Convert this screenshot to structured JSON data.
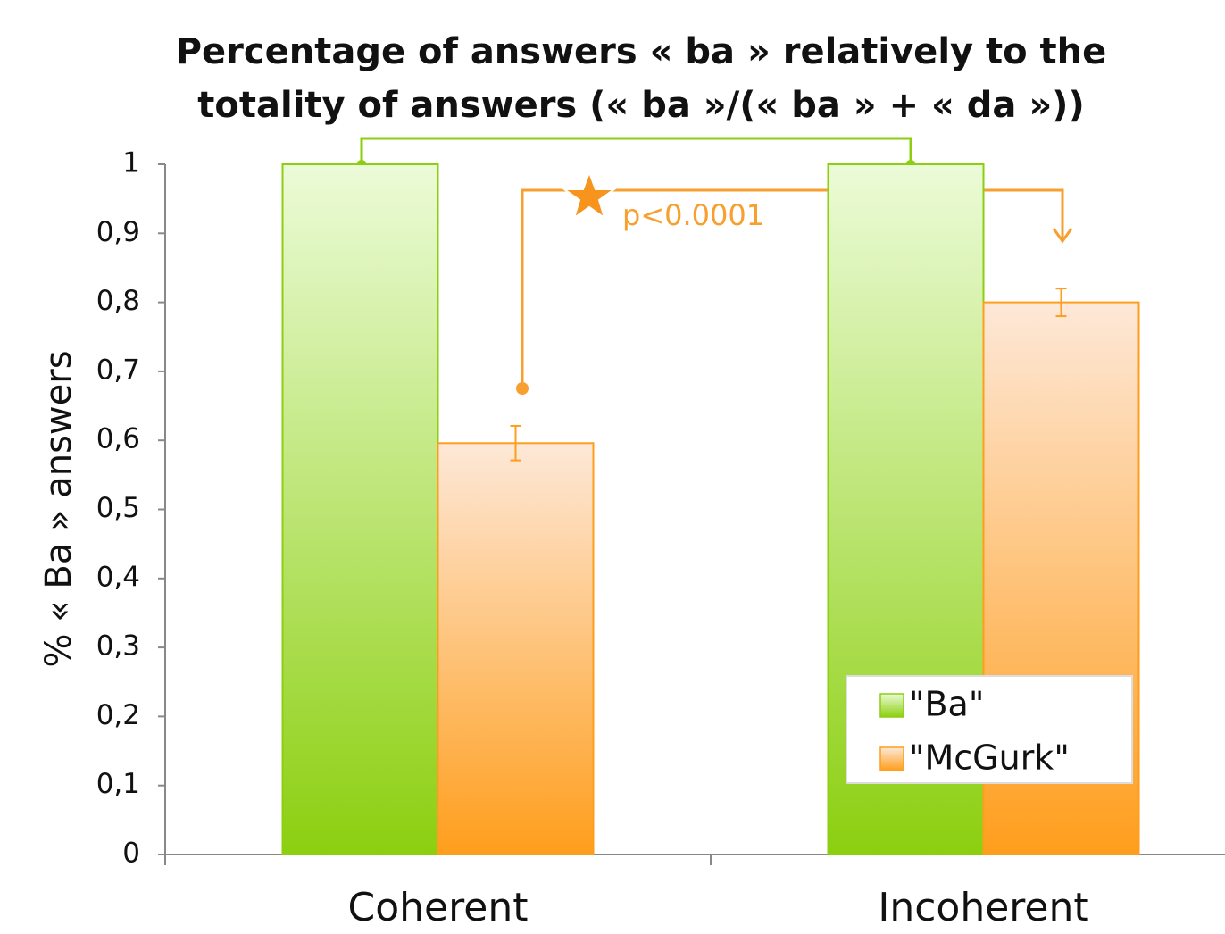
{
  "chart_data": {
    "type": "bar",
    "title": [
      "Percentage of answers  « ba » relatively to the",
      "totality of answers (« ba »/(« ba » + « da »))"
    ],
    "y_label": "% « Ba »  answers",
    "categories": [
      "Coherent",
      "Incoherent"
    ],
    "series": [
      {
        "name": "\"Ba\"",
        "color": "#8ccf10",
        "light": "#ecfbd8",
        "values": [
          1,
          1
        ]
      },
      {
        "name": "\"McGurk\"",
        "color": "#ff9e1c",
        "light": "#fde8d8",
        "values": [
          0.596,
          0.8
        ],
        "errors": [
          0.025,
          0.02
        ]
      }
    ],
    "ylim": [
      0,
      1
    ],
    "yticks": [
      0,
      {
        "value": 0.1,
        "label": "0,1"
      },
      {
        "value": 0.2,
        "label": "0,2"
      },
      {
        "value": 0.3,
        "label": "0,3"
      },
      {
        "value": 0.4,
        "label": "0,4"
      },
      {
        "value": 0.5,
        "label": "0,5"
      },
      {
        "value": 0.6,
        "label": "0,6"
      },
      {
        "value": 0.7,
        "label": "0,7"
      },
      {
        "value": 0.8,
        "label": "0,8"
      },
      {
        "value": 0.9,
        "label": "0,9"
      },
      1
    ],
    "annotations": [
      "p<0.0001"
    ],
    "legend": "lower right",
    "grid": false
  }
}
